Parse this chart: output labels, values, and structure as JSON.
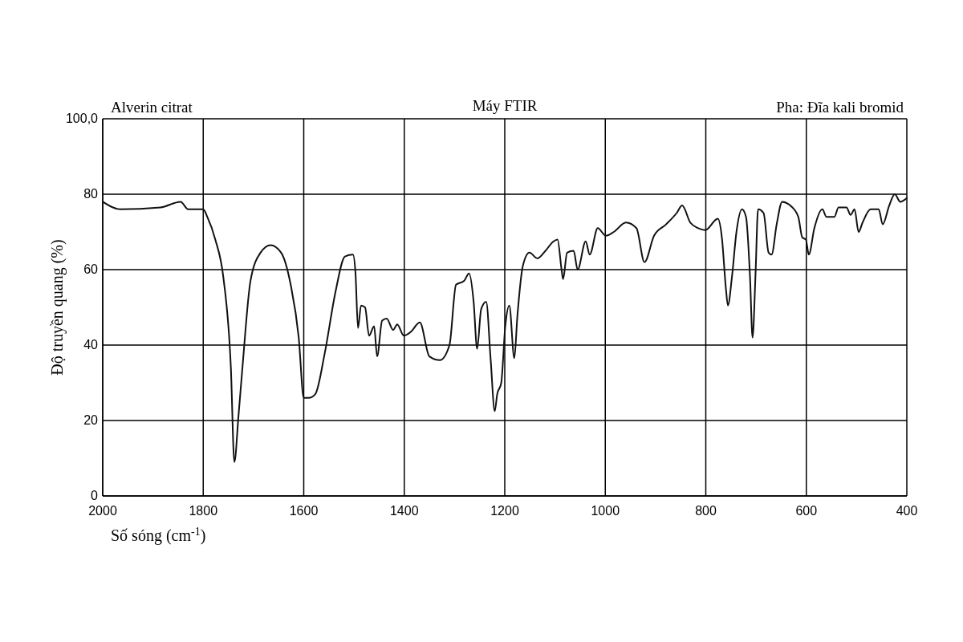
{
  "chart_data": {
    "type": "line",
    "title": "Máy FTIR",
    "annotations": [
      "Alverin citrat",
      "Pha: Đĩa kali bromid"
    ],
    "xlabel": "Số sóng (cm$^{-1}$)",
    "ylabel": "Độ truyền quang (%)",
    "xlim": [
      2000,
      400
    ],
    "xticks": [
      2000,
      1800,
      1600,
      1400,
      1200,
      1000,
      800,
      600,
      400
    ],
    "ylim": [
      0,
      100
    ],
    "yticks": [
      0,
      20,
      40,
      60,
      80,
      {
        "value": 100,
        "label": "100,0"
      }
    ],
    "grid": true,
    "marker": "none",
    "line_style": "solid",
    "series": [
      {
        "color": "#111111",
        "x": [
          2000,
          1965,
          1885,
          1845,
          1830,
          1800,
          1792,
          1776,
          1760,
          1745,
          1738,
          1730,
          1722,
          1706,
          1686,
          1666,
          1645,
          1626,
          1610,
          1600,
          1590,
          1577,
          1558,
          1537,
          1518,
          1502,
          1497,
          1492,
          1486,
          1478,
          1470,
          1460,
          1454,
          1444,
          1435,
          1422,
          1414,
          1401,
          1387,
          1369,
          1350,
          1329,
          1310,
          1297,
          1281,
          1271,
          1262,
          1255,
          1247,
          1237,
          1228,
          1220,
          1215,
          1207,
          1199,
          1191,
          1181,
          1175,
          1164,
          1151,
          1135,
          1119,
          1103,
          1095,
          1087,
          1084,
          1076,
          1063,
          1055,
          1039,
          1031,
          1015,
          999,
          983,
          959,
          938,
          922,
          903,
          879,
          858,
          847,
          831,
          815,
          801,
          776,
          768,
          760,
          756,
          748,
          739,
          728,
          720,
          712,
          707,
          701,
          696,
          685,
          675,
          669,
          659,
          648,
          632,
          616,
          608,
          601,
          595,
          584,
          568,
          560,
          544,
          536,
          520,
          512,
          504,
          496,
          488,
          472,
          456,
          448,
          435,
          424,
          413,
          400
        ],
        "values": [
          78,
          76,
          76.5,
          78,
          76,
          76,
          74,
          68,
          58,
          34,
          9,
          21,
          34,
          57,
          64.5,
          66.5,
          64.5,
          56,
          42,
          26,
          26,
          27,
          38,
          54,
          63.5,
          64,
          59,
          44.5,
          50.5,
          50,
          42.5,
          45,
          37,
          46.5,
          47,
          44,
          45.5,
          42.5,
          43.5,
          46,
          37,
          36,
          40,
          56,
          57,
          59,
          51.5,
          39,
          49.5,
          51.5,
          36,
          22.5,
          27,
          30,
          45,
          50.5,
          36.5,
          47.5,
          61,
          64.5,
          63,
          65,
          67.5,
          68,
          60,
          57.5,
          64.5,
          65,
          60,
          67.5,
          64,
          71,
          69,
          70,
          72.5,
          71,
          62,
          69,
          72,
          75,
          77,
          72.5,
          71,
          70.5,
          73.5,
          68.5,
          55,
          50.5,
          58,
          70,
          76,
          74,
          58,
          42,
          59,
          76,
          75,
          64.5,
          64,
          72,
          78,
          77,
          74,
          68.5,
          68,
          64,
          71,
          76,
          74,
          74,
          76.5,
          76.5,
          74.5,
          76,
          70,
          72.5,
          76,
          76,
          72,
          77,
          80,
          78,
          79
        ]
      }
    ]
  }
}
